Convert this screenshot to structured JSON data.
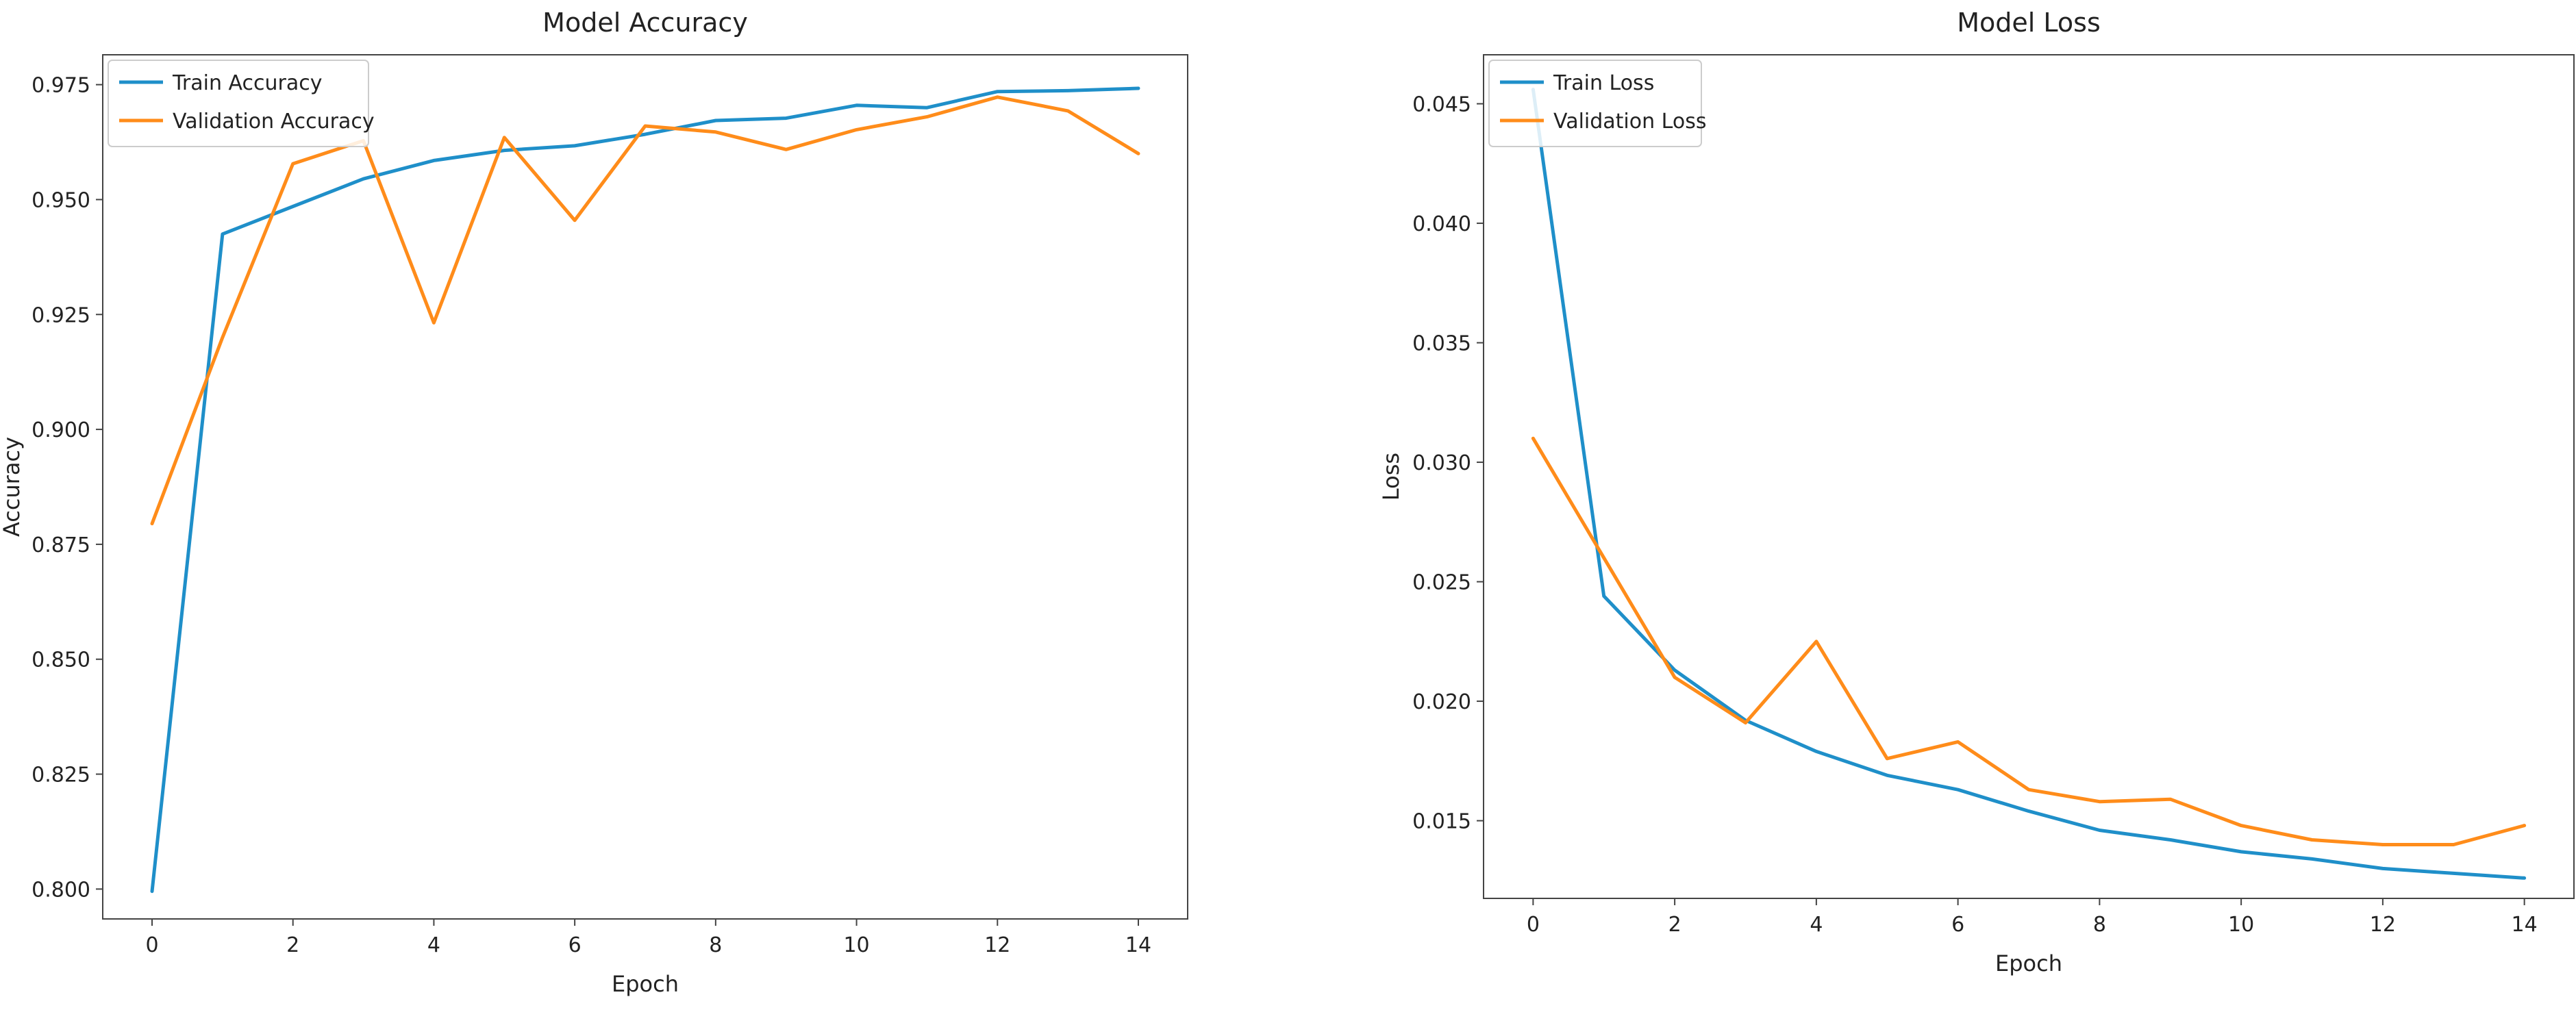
{
  "chart_data": [
    {
      "type": "line",
      "title": "Model Accuracy",
      "xlabel": "Epoch",
      "ylabel": "Accuracy",
      "x": [
        0,
        1,
        2,
        3,
        4,
        5,
        6,
        7,
        8,
        9,
        10,
        11,
        12,
        13,
        14
      ],
      "xlim": [
        -0.7,
        14.7
      ],
      "ylim": [
        0.7935,
        0.9815
      ],
      "xticks": [
        0,
        2,
        4,
        6,
        8,
        10,
        12,
        14
      ],
      "yticks": [
        0.8,
        0.825,
        0.85,
        0.875,
        0.9,
        0.925,
        0.95,
        0.975
      ],
      "xtick_labels": [
        "0",
        "2",
        "4",
        "6",
        "8",
        "10",
        "12",
        "14"
      ],
      "ytick_labels": [
        "0.800",
        "0.825",
        "0.850",
        "0.875",
        "0.900",
        "0.925",
        "0.950",
        "0.975"
      ],
      "grid": false,
      "legend": "top-left",
      "series": [
        {
          "name": "Train Accuracy",
          "color": "#1f8fc9",
          "values": [
            0.7995,
            0.9425,
            0.9485,
            0.9545,
            0.9585,
            0.9607,
            0.9617,
            0.9642,
            0.9672,
            0.9677,
            0.9705,
            0.97,
            0.9735,
            0.9737,
            0.9742
          ]
        },
        {
          "name": "Validation Accuracy",
          "color": "#ff8c1a",
          "values": [
            0.8795,
            0.92,
            0.9578,
            0.9628,
            0.9232,
            0.9635,
            0.9455,
            0.966,
            0.9647,
            0.9609,
            0.9652,
            0.968,
            0.9723,
            0.9693,
            0.96
          ]
        }
      ]
    },
    {
      "type": "line",
      "title": "Model Loss",
      "xlabel": "Epoch",
      "ylabel": "Loss",
      "x": [
        0,
        1,
        2,
        3,
        4,
        5,
        6,
        7,
        8,
        9,
        10,
        11,
        12,
        13,
        14
      ],
      "xlim": [
        -0.7,
        14.7
      ],
      "ylim": [
        0.01175,
        0.04705
      ],
      "xticks": [
        0,
        2,
        4,
        6,
        8,
        10,
        12,
        14
      ],
      "yticks": [
        0.015,
        0.02,
        0.025,
        0.03,
        0.035,
        0.04,
        0.045
      ],
      "xtick_labels": [
        "0",
        "2",
        "4",
        "6",
        "8",
        "10",
        "12",
        "14"
      ],
      "ytick_labels": [
        "0.015",
        "0.020",
        "0.025",
        "0.030",
        "0.035",
        "0.040",
        "0.045"
      ],
      "grid": false,
      "legend": "top-left",
      "series": [
        {
          "name": "Train Loss",
          "color": "#1f8fc9",
          "values": [
            0.0456,
            0.0244,
            0.0213,
            0.0192,
            0.0179,
            0.0169,
            0.0163,
            0.0154,
            0.0146,
            0.0142,
            0.0137,
            0.0134,
            0.013,
            0.0128,
            0.0126
          ]
        },
        {
          "name": "Validation Loss",
          "color": "#ff8c1a",
          "values": [
            0.031,
            0.026,
            0.021,
            0.0191,
            0.0225,
            0.0176,
            0.0183,
            0.0163,
            0.0158,
            0.0159,
            0.0148,
            0.0142,
            0.014,
            0.014,
            0.0148
          ]
        }
      ]
    }
  ]
}
